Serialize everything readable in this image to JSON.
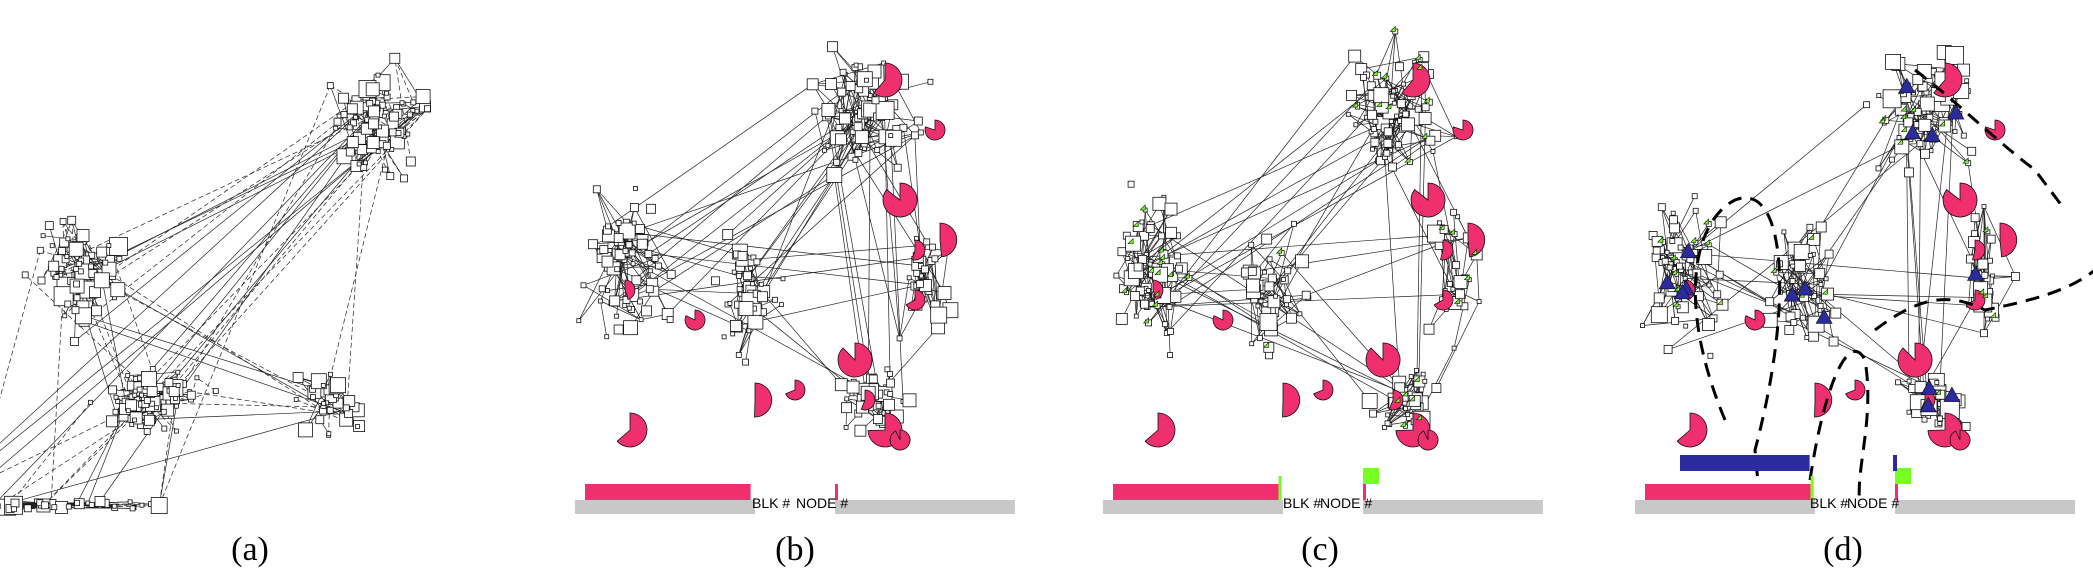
{
  "colors": {
    "background": "#ffffff",
    "edge": "#222222",
    "node_fill": "#ffffff",
    "node_stroke": "#111111",
    "pink": "#f0306e",
    "green": "#77ff22",
    "navy": "#2b2b9e",
    "gray_bar": "#c8c8c8",
    "path": "#000000"
  },
  "panels": [
    {
      "id": "a",
      "caption": "(a)",
      "bar_label_blk": "",
      "bar_label_node": ""
    },
    {
      "id": "b",
      "caption": "(b)",
      "bar_label_blk": "BLK #",
      "bar_label_node": "NODE #"
    },
    {
      "id": "c",
      "caption": "(c)",
      "bar_label_blk": "BLK #",
      "bar_label_node": "NODE #"
    },
    {
      "id": "d",
      "caption": "(d)",
      "bar_label_blk": "BLK #",
      "bar_label_node": "NODE #"
    }
  ],
  "legend_bars": {
    "b": {
      "pink_fraction": 0.92,
      "green_fraction": 0.0,
      "navy_fraction": 0.0
    },
    "c": {
      "pink_fraction": 0.92,
      "green_fraction": 0.08,
      "navy_fraction": 0.0
    },
    "d": {
      "pink_fraction": 0.92,
      "green_fraction": 0.08,
      "navy_fraction": 0.72
    }
  }
}
